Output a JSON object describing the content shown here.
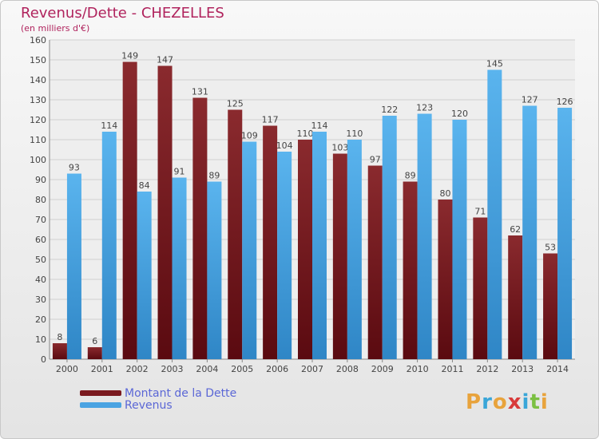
{
  "header": {
    "title": "Revenus/Dette - CHEZELLES",
    "subtitle": "(en milliers d'€)"
  },
  "colors": {
    "dette": "#7a1a1f",
    "revenus": "#4aa3e2",
    "title": "#b0235d",
    "legend_text": "#5b67d6"
  },
  "chart_data": {
    "type": "bar",
    "title": "Revenus/Dette - CHEZELLES",
    "ylabel": "(en milliers d'€)",
    "xlabel": "",
    "ylim": [
      0,
      160
    ],
    "yticks": [
      0,
      10,
      20,
      30,
      40,
      50,
      60,
      70,
      80,
      90,
      100,
      110,
      120,
      130,
      140,
      150,
      160
    ],
    "grid": true,
    "legend_position": "bottom-left",
    "categories": [
      "2000",
      "2001",
      "2002",
      "2003",
      "2004",
      "2005",
      "2006",
      "2007",
      "2008",
      "2009",
      "2010",
      "2011",
      "2012",
      "2013",
      "2014"
    ],
    "series": [
      {
        "name": "Montant de la Dette",
        "color": "#7a1a1f",
        "values": [
          8,
          6,
          149,
          147,
          131,
          125,
          117,
          110,
          103,
          97,
          89,
          80,
          71,
          62,
          53
        ]
      },
      {
        "name": "Revenus",
        "color": "#4aa3e2",
        "values": [
          93,
          114,
          84,
          91,
          89,
          109,
          104,
          114,
          110,
          122,
          123,
          120,
          145,
          127,
          126
        ]
      }
    ]
  },
  "legend": {
    "dette_label": "Montant de la Dette",
    "revenus_label": "Revenus"
  },
  "logo": {
    "letters": [
      "P",
      "r",
      "o",
      "x",
      "i",
      "t",
      "i"
    ],
    "colors": [
      "#e8a33c",
      "#3aa6d8",
      "#e8a33c",
      "#d83a3a",
      "#3aa6d8",
      "#7cc043",
      "#e8a33c"
    ]
  }
}
